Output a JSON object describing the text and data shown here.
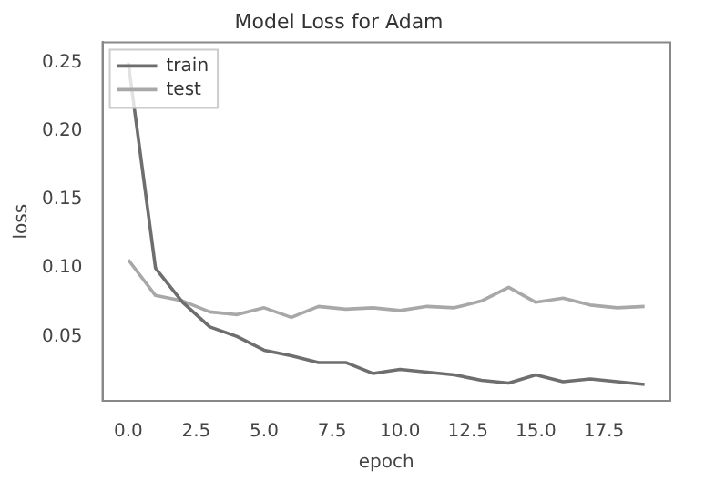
{
  "chart_data": {
    "type": "line",
    "title": "Model Loss for Adam",
    "xlabel": "epoch",
    "ylabel": "loss",
    "x": [
      0,
      1,
      2,
      3,
      4,
      5,
      6,
      7,
      8,
      9,
      10,
      11,
      12,
      13,
      14,
      15,
      16,
      17,
      18,
      19
    ],
    "series": [
      {
        "name": "train",
        "color": "#6e6e6e",
        "values": [
          0.25,
          0.1,
          0.075,
          0.057,
          0.05,
          0.04,
          0.036,
          0.031,
          0.031,
          0.023,
          0.026,
          0.024,
          0.022,
          0.018,
          0.016,
          0.022,
          0.017,
          0.019,
          0.017,
          0.015
        ]
      },
      {
        "name": "test",
        "color": "#a8a8a8",
        "values": [
          0.106,
          0.08,
          0.076,
          0.068,
          0.066,
          0.071,
          0.064,
          0.072,
          0.07,
          0.071,
          0.069,
          0.072,
          0.071,
          0.076,
          0.086,
          0.075,
          0.078,
          0.073,
          0.071,
          0.072
        ]
      }
    ],
    "xlim": [
      -0.95,
      19.95
    ],
    "ylim": [
      0.003,
      0.265
    ],
    "xticks": [
      {
        "value": 0,
        "label": "0.0"
      },
      {
        "value": 2.5,
        "label": "2.5"
      },
      {
        "value": 5,
        "label": "5.0"
      },
      {
        "value": 7.5,
        "label": "7.5"
      },
      {
        "value": 10,
        "label": "10.0"
      },
      {
        "value": 12.5,
        "label": "12.5"
      },
      {
        "value": 15,
        "label": "15.0"
      },
      {
        "value": 17.5,
        "label": "17.5"
      }
    ],
    "yticks": [
      {
        "value": 0.05,
        "label": "0.05"
      },
      {
        "value": 0.1,
        "label": "0.10"
      },
      {
        "value": 0.15,
        "label": "0.15"
      },
      {
        "value": 0.2,
        "label": "0.20"
      },
      {
        "value": 0.25,
        "label": "0.25"
      }
    ],
    "grid": false,
    "legend": "top left",
    "marker": "none",
    "line_style": "solid"
  }
}
